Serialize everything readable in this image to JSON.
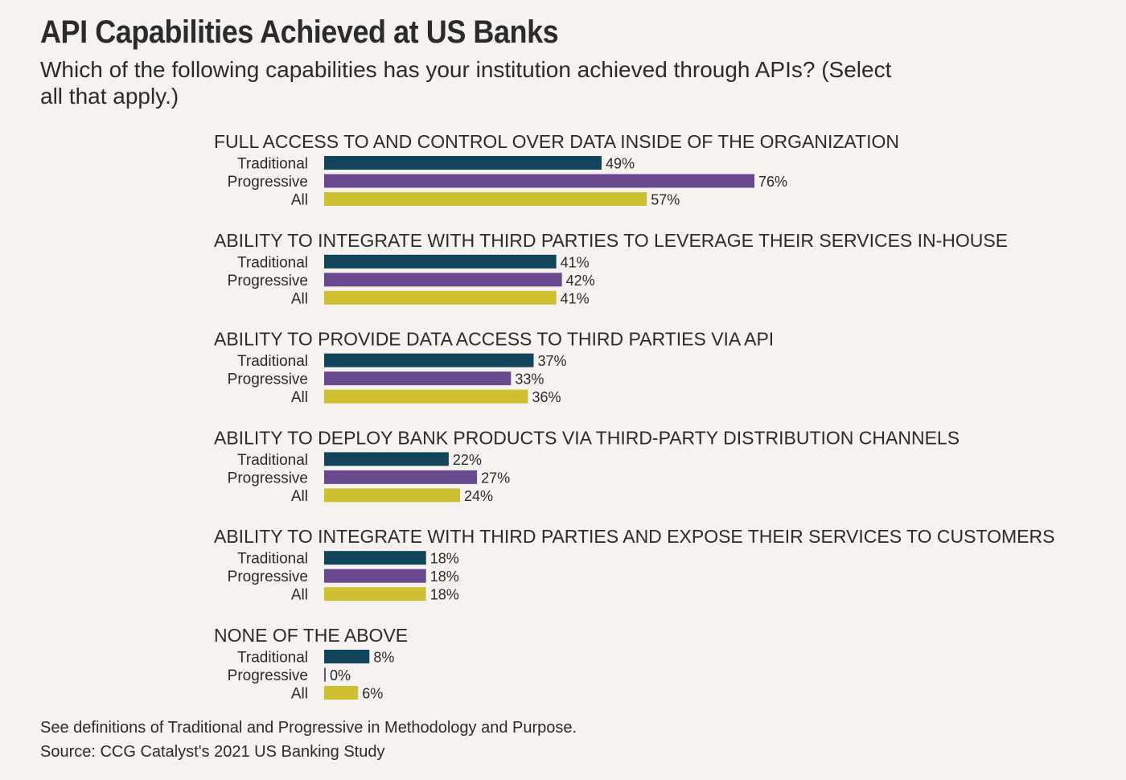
{
  "title": "API Capabilities Achieved at US Banks",
  "subtitle": "Which of the following capabilities has your institution achieved through APIs? (Select all that apply.)",
  "footnote": "See definitions of Traditional and Progressive in Methodology and Purpose.",
  "source": "Source: CCG Catalyst's 2021 US Banking Study",
  "colors": {
    "Traditional": "#12445c",
    "Progressive": "#6a4a8e",
    "All": "#cfc032"
  },
  "chart_data": {
    "type": "bar",
    "orientation": "horizontal",
    "unit": "%",
    "categories": [
      "FULL ACCESS TO AND CONTROL OVER DATA INSIDE OF THE ORGANIZATION",
      "ABILITY TO INTEGRATE WITH THIRD PARTIES TO LEVERAGE THEIR SERVICES IN-HOUSE",
      "ABILITY TO PROVIDE DATA ACCESS TO THIRD PARTIES VIA API",
      "ABILITY TO DEPLOY BANK PRODUCTS VIA THIRD-PARTY DISTRIBUTION CHANNELS",
      "ABILITY TO INTEGRATE WITH THIRD PARTIES AND EXPOSE THEIR SERVICES TO CUSTOMERS",
      "NONE OF THE ABOVE"
    ],
    "series": [
      {
        "name": "Traditional",
        "values": [
          49,
          41,
          37,
          22,
          18,
          8
        ]
      },
      {
        "name": "Progressive",
        "values": [
          76,
          42,
          33,
          27,
          18,
          0
        ]
      },
      {
        "name": "All",
        "values": [
          57,
          41,
          36,
          24,
          18,
          6
        ]
      }
    ],
    "xlim": [
      0,
      100
    ],
    "grid": false,
    "legend": "none"
  }
}
